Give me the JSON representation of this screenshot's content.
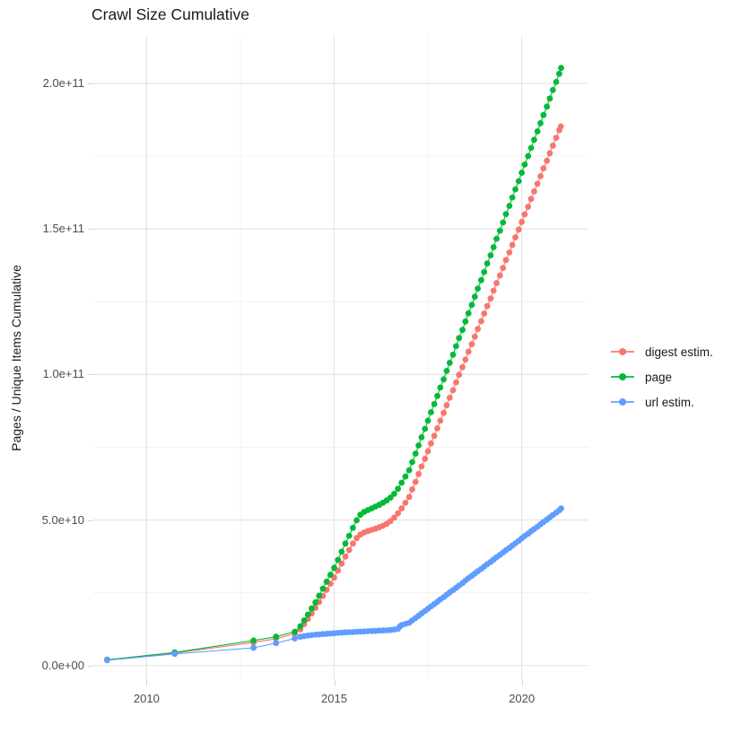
{
  "chart_data": {
    "type": "scatter",
    "title": "Crawl Size Cumulative",
    "xlabel": "",
    "ylabel": "Pages / Unique Items Cumulative",
    "y_unit": "items cumulative; point values stored in billions (1e9)",
    "grid": true,
    "legend_position": "right",
    "x_axis": {
      "lim": [
        2008.58,
        2021.78
      ],
      "ticks": [
        {
          "label": "2010",
          "value": 2010
        },
        {
          "label": "2015",
          "value": 2015
        },
        {
          "label": "2020",
          "value": 2020
        }
      ],
      "minor": [
        2012.5,
        2017.5
      ]
    },
    "y_axis": {
      "lim": [
        -5,
        216.3
      ],
      "ticks": [
        {
          "label": "0.0e+00",
          "value": 0
        },
        {
          "label": "5.0e+10",
          "value": 50
        },
        {
          "label": "1.0e+11",
          "value": 100
        },
        {
          "label": "1.5e+11",
          "value": 150
        },
        {
          "label": "2.0e+11",
          "value": 200
        }
      ],
      "minor": [
        25,
        75,
        125,
        175
      ]
    },
    "series": [
      {
        "name": "digest estim.",
        "color": "#F8766D",
        "points": [
          [
            2008.95,
            1.9
          ],
          [
            2010.75,
            4.3
          ],
          [
            2012.85,
            7.9
          ],
          [
            2013.45,
            9.2
          ],
          [
            2013.95,
            10.9
          ],
          [
            2014.1,
            12.4
          ],
          [
            2014.2,
            14.2
          ],
          [
            2014.3,
            16.0
          ],
          [
            2014.4,
            17.9
          ],
          [
            2014.5,
            19.8
          ],
          [
            2014.6,
            21.8
          ],
          [
            2014.7,
            23.9
          ],
          [
            2014.8,
            26.0
          ],
          [
            2014.9,
            28.1
          ],
          [
            2015.0,
            30.2
          ],
          [
            2015.1,
            32.6
          ],
          [
            2015.2,
            35.0
          ],
          [
            2015.3,
            37.4
          ],
          [
            2015.4,
            39.7
          ],
          [
            2015.5,
            41.9
          ],
          [
            2015.6,
            43.8
          ],
          [
            2015.7,
            45.0
          ],
          [
            2015.8,
            45.7
          ],
          [
            2015.9,
            46.2
          ],
          [
            2016.0,
            46.6
          ],
          [
            2016.1,
            47.0
          ],
          [
            2016.2,
            47.5
          ],
          [
            2016.3,
            48.0
          ],
          [
            2016.4,
            48.7
          ],
          [
            2016.5,
            49.6
          ],
          [
            2016.6,
            50.8
          ],
          [
            2016.7,
            52.3
          ],
          [
            2016.8,
            54.0
          ],
          [
            2016.9,
            55.9
          ],
          [
            2017.0,
            57.9
          ],
          [
            2017.08,
            60.5
          ],
          [
            2017.17,
            63.1
          ],
          [
            2017.25,
            65.8
          ],
          [
            2017.33,
            68.4
          ],
          [
            2017.42,
            71.0
          ],
          [
            2017.5,
            73.6
          ],
          [
            2017.58,
            76.3
          ],
          [
            2017.67,
            78.9
          ],
          [
            2017.75,
            81.5
          ],
          [
            2017.83,
            84.1
          ],
          [
            2017.92,
            86.8
          ],
          [
            2018.0,
            89.4
          ],
          [
            2018.08,
            92.0
          ],
          [
            2018.17,
            94.6
          ],
          [
            2018.25,
            97.3
          ],
          [
            2018.33,
            99.9
          ],
          [
            2018.42,
            102.5
          ],
          [
            2018.5,
            105.1
          ],
          [
            2018.58,
            107.8
          ],
          [
            2018.67,
            110.4
          ],
          [
            2018.75,
            113.0
          ],
          [
            2018.83,
            115.6
          ],
          [
            2018.92,
            118.3
          ],
          [
            2019.0,
            120.9
          ],
          [
            2019.08,
            123.5
          ],
          [
            2019.17,
            126.1
          ],
          [
            2019.25,
            128.8
          ],
          [
            2019.33,
            131.4
          ],
          [
            2019.42,
            134.0
          ],
          [
            2019.5,
            136.6
          ],
          [
            2019.58,
            139.3
          ],
          [
            2019.67,
            141.9
          ],
          [
            2019.75,
            144.5
          ],
          [
            2019.83,
            147.1
          ],
          [
            2019.92,
            149.8
          ],
          [
            2020.0,
            152.4
          ],
          [
            2020.08,
            155.0
          ],
          [
            2020.17,
            157.6
          ],
          [
            2020.25,
            160.3
          ],
          [
            2020.33,
            162.9
          ],
          [
            2020.42,
            165.5
          ],
          [
            2020.5,
            168.1
          ],
          [
            2020.58,
            170.8
          ],
          [
            2020.67,
            173.4
          ],
          [
            2020.75,
            176.0
          ],
          [
            2020.83,
            178.6
          ],
          [
            2020.92,
            181.3
          ],
          [
            2021.0,
            183.9
          ],
          [
            2021.04,
            185.2
          ]
        ]
      },
      {
        "name": "page",
        "color": "#00BA38",
        "points": [
          [
            2008.95,
            2.0
          ],
          [
            2010.75,
            4.5
          ],
          [
            2012.85,
            8.6
          ],
          [
            2013.45,
            9.9
          ],
          [
            2013.95,
            11.6
          ],
          [
            2014.1,
            13.5
          ],
          [
            2014.2,
            15.5
          ],
          [
            2014.3,
            17.5
          ],
          [
            2014.4,
            19.6
          ],
          [
            2014.5,
            21.7
          ],
          [
            2014.6,
            24.0
          ],
          [
            2014.7,
            26.4
          ],
          [
            2014.8,
            28.8
          ],
          [
            2014.9,
            31.2
          ],
          [
            2015.0,
            33.6
          ],
          [
            2015.1,
            36.3
          ],
          [
            2015.2,
            39.1
          ],
          [
            2015.3,
            41.9
          ],
          [
            2015.4,
            44.6
          ],
          [
            2015.5,
            47.3
          ],
          [
            2015.6,
            49.9
          ],
          [
            2015.7,
            51.8
          ],
          [
            2015.8,
            52.8
          ],
          [
            2015.9,
            53.4
          ],
          [
            2016.0,
            54.0
          ],
          [
            2016.1,
            54.6
          ],
          [
            2016.2,
            55.2
          ],
          [
            2016.3,
            55.9
          ],
          [
            2016.4,
            56.7
          ],
          [
            2016.5,
            57.7
          ],
          [
            2016.6,
            59.0
          ],
          [
            2016.7,
            60.7
          ],
          [
            2016.8,
            62.8
          ],
          [
            2016.9,
            64.9
          ],
          [
            2017.0,
            67.1
          ],
          [
            2017.08,
            69.9
          ],
          [
            2017.17,
            72.8
          ],
          [
            2017.25,
            75.6
          ],
          [
            2017.33,
            78.4
          ],
          [
            2017.42,
            81.3
          ],
          [
            2017.5,
            84.1
          ],
          [
            2017.58,
            87.0
          ],
          [
            2017.67,
            89.8
          ],
          [
            2017.75,
            92.6
          ],
          [
            2017.83,
            95.5
          ],
          [
            2017.92,
            98.3
          ],
          [
            2018.0,
            101.2
          ],
          [
            2018.08,
            104.0
          ],
          [
            2018.17,
            106.8
          ],
          [
            2018.25,
            109.7
          ],
          [
            2018.33,
            112.5
          ],
          [
            2018.42,
            115.3
          ],
          [
            2018.5,
            118.2
          ],
          [
            2018.58,
            121.0
          ],
          [
            2018.67,
            123.9
          ],
          [
            2018.75,
            126.7
          ],
          [
            2018.83,
            129.5
          ],
          [
            2018.92,
            132.4
          ],
          [
            2019.0,
            135.2
          ],
          [
            2019.08,
            138.1
          ],
          [
            2019.17,
            140.9
          ],
          [
            2019.25,
            143.7
          ],
          [
            2019.33,
            146.6
          ],
          [
            2019.42,
            149.4
          ],
          [
            2019.5,
            152.2
          ],
          [
            2019.58,
            155.1
          ],
          [
            2019.67,
            157.9
          ],
          [
            2019.75,
            160.8
          ],
          [
            2019.83,
            163.6
          ],
          [
            2019.92,
            166.4
          ],
          [
            2020.0,
            169.3
          ],
          [
            2020.08,
            172.1
          ],
          [
            2020.17,
            175.0
          ],
          [
            2020.25,
            177.8
          ],
          [
            2020.33,
            180.6
          ],
          [
            2020.42,
            183.5
          ],
          [
            2020.5,
            186.3
          ],
          [
            2020.58,
            189.1
          ],
          [
            2020.67,
            192.0
          ],
          [
            2020.75,
            194.8
          ],
          [
            2020.83,
            197.7
          ],
          [
            2020.92,
            200.5
          ],
          [
            2021.0,
            203.3
          ],
          [
            2021.05,
            205.3
          ]
        ]
      },
      {
        "name": "url estim.",
        "color": "#619CFF",
        "points": [
          [
            2008.95,
            1.8
          ],
          [
            2010.75,
            4.0
          ],
          [
            2012.85,
            6.1
          ],
          [
            2013.45,
            7.7
          ],
          [
            2013.95,
            9.3
          ],
          [
            2014.1,
            9.9
          ],
          [
            2014.2,
            10.1
          ],
          [
            2014.3,
            10.3
          ],
          [
            2014.4,
            10.45
          ],
          [
            2014.5,
            10.6
          ],
          [
            2014.6,
            10.7
          ],
          [
            2014.7,
            10.8
          ],
          [
            2014.8,
            10.9
          ],
          [
            2014.9,
            11.0
          ],
          [
            2015.0,
            11.1
          ],
          [
            2015.1,
            11.2
          ],
          [
            2015.2,
            11.3
          ],
          [
            2015.3,
            11.4
          ],
          [
            2015.4,
            11.45
          ],
          [
            2015.5,
            11.5
          ],
          [
            2015.6,
            11.6
          ],
          [
            2015.7,
            11.65
          ],
          [
            2015.8,
            11.7
          ],
          [
            2015.9,
            11.8
          ],
          [
            2016.0,
            11.85
          ],
          [
            2016.1,
            11.9
          ],
          [
            2016.2,
            12.0
          ],
          [
            2016.3,
            12.05
          ],
          [
            2016.4,
            12.1
          ],
          [
            2016.5,
            12.2
          ],
          [
            2016.6,
            12.35
          ],
          [
            2016.7,
            12.6
          ],
          [
            2016.75,
            13.4
          ],
          [
            2016.8,
            13.9
          ],
          [
            2016.9,
            14.3
          ],
          [
            2017.0,
            14.7
          ],
          [
            2017.08,
            15.5
          ],
          [
            2017.17,
            16.3
          ],
          [
            2017.25,
            17.1
          ],
          [
            2017.33,
            17.9
          ],
          [
            2017.42,
            18.7
          ],
          [
            2017.5,
            19.5
          ],
          [
            2017.58,
            20.3
          ],
          [
            2017.67,
            21.1
          ],
          [
            2017.75,
            21.9
          ],
          [
            2017.83,
            22.7
          ],
          [
            2017.92,
            23.5
          ],
          [
            2018.0,
            24.3
          ],
          [
            2018.08,
            25.1
          ],
          [
            2018.17,
            25.9
          ],
          [
            2018.25,
            26.7
          ],
          [
            2018.33,
            27.5
          ],
          [
            2018.42,
            28.3
          ],
          [
            2018.5,
            29.2
          ],
          [
            2018.58,
            30.0
          ],
          [
            2018.67,
            30.8
          ],
          [
            2018.75,
            31.6
          ],
          [
            2018.83,
            32.4
          ],
          [
            2018.92,
            33.2
          ],
          [
            2019.0,
            34.0
          ],
          [
            2019.08,
            34.8
          ],
          [
            2019.17,
            35.6
          ],
          [
            2019.25,
            36.4
          ],
          [
            2019.33,
            37.2
          ],
          [
            2019.42,
            38.0
          ],
          [
            2019.5,
            38.8
          ],
          [
            2019.58,
            39.6
          ],
          [
            2019.67,
            40.4
          ],
          [
            2019.75,
            41.2
          ],
          [
            2019.83,
            42.0
          ],
          [
            2019.92,
            42.8
          ],
          [
            2020.0,
            43.7
          ],
          [
            2020.08,
            44.5
          ],
          [
            2020.17,
            45.3
          ],
          [
            2020.25,
            46.1
          ],
          [
            2020.33,
            46.9
          ],
          [
            2020.42,
            47.7
          ],
          [
            2020.5,
            48.5
          ],
          [
            2020.58,
            49.3
          ],
          [
            2020.67,
            50.1
          ],
          [
            2020.75,
            50.9
          ],
          [
            2020.83,
            51.7
          ],
          [
            2020.92,
            52.5
          ],
          [
            2021.0,
            53.3
          ],
          [
            2021.05,
            54.0
          ]
        ]
      }
    ],
    "style": {
      "major_grid_color": "#e6e6e6",
      "minor_grid_color": "#f0f0f0",
      "tick_color": "#d6d6d6",
      "axis_text_color": "#4d4d4d",
      "title_color": "#1a1a1a",
      "background": "#ffffff"
    }
  }
}
